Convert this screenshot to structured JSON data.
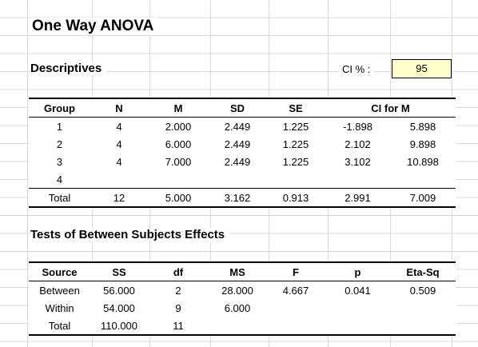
{
  "title": "One Way ANOVA",
  "descriptives": {
    "heading": "Descriptives",
    "ci_label": "CI % :",
    "ci_value": "95",
    "headers": [
      "Group",
      "N",
      "M",
      "SD",
      "SE",
      "CI for M"
    ],
    "rows": [
      [
        "1",
        "4",
        "2.000",
        "2.449",
        "1.225",
        "-1.898",
        "5.898"
      ],
      [
        "2",
        "4",
        "6.000",
        "2.449",
        "1.225",
        "2.102",
        "9.898"
      ],
      [
        "3",
        "4",
        "7.000",
        "2.449",
        "1.225",
        "3.102",
        "10.898"
      ],
      [
        "4",
        "",
        "",
        "",
        "",
        "",
        ""
      ]
    ],
    "total": [
      "Total",
      "12",
      "5.000",
      "3.162",
      "0.913",
      "2.991",
      "7.009"
    ]
  },
  "tests": {
    "heading": "Tests of Between Subjects Effects",
    "headers": [
      "Source",
      "SS",
      "df",
      "MS",
      "F",
      "p",
      "Eta-Sq"
    ],
    "rows": [
      [
        "Between",
        "56.000",
        "2",
        "28.000",
        "4.667",
        "0.041",
        "0.509"
      ],
      [
        "Within",
        "54.000",
        "9",
        "6.000",
        "",
        "",
        ""
      ],
      [
        "Total",
        "110.000",
        "11",
        "",
        "",
        "",
        ""
      ]
    ]
  }
}
